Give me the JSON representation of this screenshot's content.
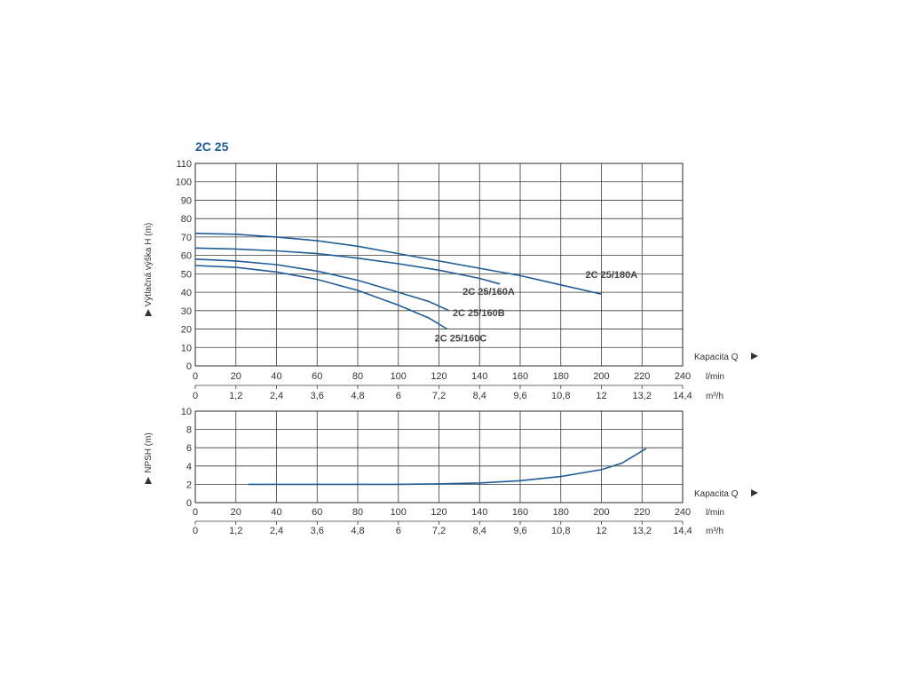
{
  "chart_data": [
    {
      "type": "line",
      "title": "2C 25",
      "ylabel": "Výtlačná výška H (m)",
      "xlabel": "Kapacita Q",
      "x_unit_primary": "l/min",
      "x_unit_secondary": "m³/h",
      "xlim": [
        0,
        240
      ],
      "ylim": [
        0,
        110
      ],
      "y_ticks": [
        "0",
        "10",
        "20",
        "30",
        "40",
        "50",
        "60",
        "70",
        "80",
        "90",
        "100",
        "110"
      ],
      "x_ticks_primary": [
        "0",
        "20",
        "40",
        "60",
        "80",
        "100",
        "120",
        "140",
        "160",
        "180",
        "200",
        "220",
        "240"
      ],
      "x_ticks_secondary": [
        "0",
        "1,2",
        "2,4",
        "3,6",
        "4,8",
        "6",
        "7,2",
        "8,4",
        "9,6",
        "10,8",
        "12",
        "13,2",
        "14,4"
      ],
      "grid": true,
      "series": [
        {
          "name": "2C 25/180A",
          "x": [
            0,
            20,
            40,
            60,
            80,
            100,
            120,
            140,
            160,
            180,
            200
          ],
          "y": [
            72,
            71.5,
            70,
            68,
            65,
            61,
            57,
            53,
            49,
            44,
            39
          ]
        },
        {
          "name": "2C 25/160A",
          "x": [
            0,
            20,
            40,
            60,
            80,
            100,
            120,
            140,
            150
          ],
          "y": [
            64,
            63.5,
            62.5,
            61,
            58.5,
            55.5,
            52,
            47.5,
            44.5
          ]
        },
        {
          "name": "2C 25/160B",
          "x": [
            0,
            20,
            40,
            60,
            80,
            100,
            115,
            125
          ],
          "y": [
            58,
            57,
            55,
            51.5,
            46.5,
            40,
            35,
            30
          ]
        },
        {
          "name": "2C 25/160C",
          "x": [
            0,
            20,
            40,
            60,
            80,
            100,
            115,
            124
          ],
          "y": [
            54.5,
            53.5,
            51,
            47,
            41,
            33,
            26,
            20
          ]
        }
      ]
    },
    {
      "type": "line",
      "title": "",
      "ylabel": "NPSH (m)",
      "xlabel": "Kapacita Q",
      "x_unit_primary": "l/min",
      "x_unit_secondary": "m³/h",
      "xlim": [
        0,
        240
      ],
      "ylim": [
        0,
        10
      ],
      "y_ticks": [
        "0",
        "2",
        "4",
        "6",
        "8",
        "10"
      ],
      "x_ticks_primary": [
        "0",
        "20",
        "40",
        "60",
        "80",
        "100",
        "120",
        "140",
        "160",
        "180",
        "200",
        "220",
        "240"
      ],
      "x_ticks_secondary": [
        "0",
        "1,2",
        "2,4",
        "3,6",
        "4,8",
        "6",
        "7,2",
        "8,4",
        "9,6",
        "10,8",
        "12",
        "13,2",
        "14,4"
      ],
      "grid": true,
      "series": [
        {
          "name": "",
          "x": [
            26,
            60,
            100,
            120,
            140,
            160,
            180,
            200,
            210,
            222
          ],
          "y": [
            2,
            2,
            2,
            2.05,
            2.15,
            2.4,
            2.85,
            3.6,
            4.3,
            5.9
          ]
        }
      ]
    }
  ]
}
